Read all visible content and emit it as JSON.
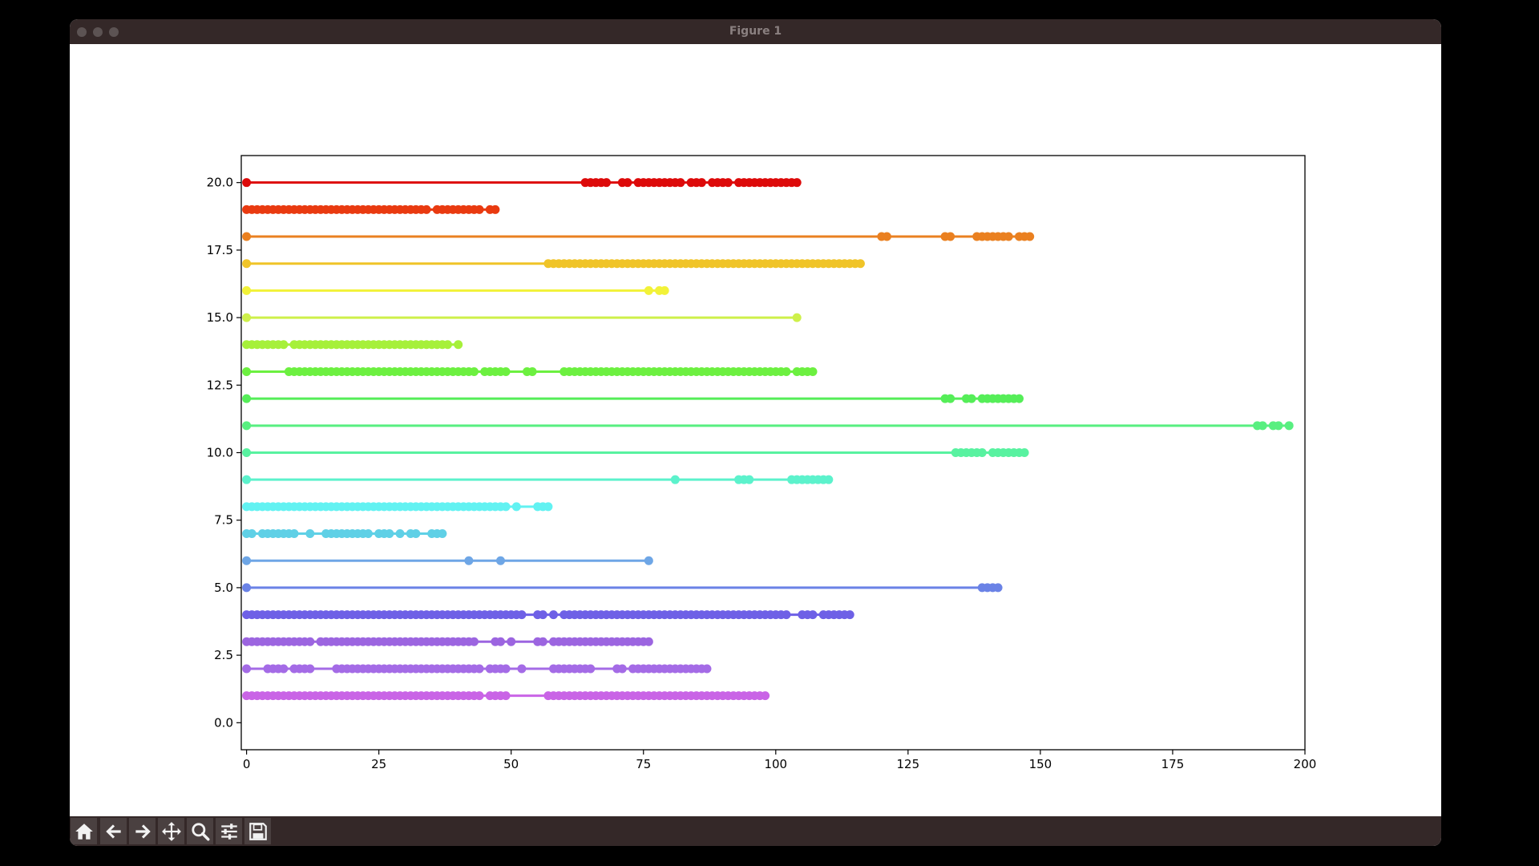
{
  "window": {
    "title": "Figure 1"
  },
  "toolbar": {
    "buttons": [
      {
        "name": "home-icon"
      },
      {
        "name": "back-arrow-icon"
      },
      {
        "name": "forward-arrow-icon"
      },
      {
        "name": "pan-move-icon"
      },
      {
        "name": "zoom-magnifier-icon"
      },
      {
        "name": "configure-subplots-icon"
      },
      {
        "name": "save-floppy-icon"
      }
    ]
  },
  "chart_data": {
    "type": "scatter",
    "title": "",
    "xlabel": "",
    "ylabel": "",
    "xlim": [
      -1,
      200
    ],
    "ylim": [
      -1,
      21
    ],
    "xticks": [
      0,
      25,
      50,
      75,
      100,
      125,
      150,
      175,
      200
    ],
    "xtick_labels": [
      "0",
      "25",
      "50",
      "75",
      "100",
      "125",
      "150",
      "175",
      "200"
    ],
    "yticks": [
      0,
      2.5,
      5,
      7.5,
      10,
      12.5,
      15,
      17.5,
      20
    ],
    "ytick_labels": [
      "0.0",
      "2.5",
      "5.0",
      "7.5",
      "10.0",
      "12.5",
      "15.0",
      "17.5",
      "20.0"
    ],
    "grid": false,
    "series": [
      {
        "y": 1,
        "color": "#c964e6",
        "x": [
          0,
          1,
          2,
          3,
          4,
          5,
          6,
          7,
          8,
          9,
          10,
          11,
          12,
          13,
          14,
          15,
          16,
          17,
          18,
          19,
          20,
          21,
          22,
          23,
          24,
          25,
          26,
          27,
          28,
          29,
          30,
          31,
          32,
          33,
          34,
          35,
          36,
          37,
          38,
          39,
          40,
          41,
          42,
          43,
          44,
          46,
          47,
          48,
          49,
          57,
          58,
          59,
          60,
          61,
          62,
          63,
          64,
          65,
          66,
          67,
          68,
          69,
          70,
          71,
          72,
          73,
          74,
          75,
          76,
          77,
          78,
          79,
          80,
          81,
          82,
          83,
          84,
          85,
          86,
          87,
          88,
          89,
          90,
          91,
          92,
          93,
          94,
          95,
          96,
          97,
          98
        ]
      },
      {
        "y": 2,
        "color": "#a46be6",
        "x": [
          0,
          4,
          5,
          6,
          7,
          9,
          10,
          11,
          12,
          17,
          18,
          19,
          20,
          21,
          22,
          23,
          24,
          25,
          26,
          27,
          28,
          29,
          30,
          31,
          32,
          33,
          34,
          35,
          36,
          37,
          38,
          39,
          40,
          41,
          42,
          43,
          44,
          46,
          47,
          48,
          49,
          52,
          58,
          59,
          60,
          61,
          62,
          63,
          64,
          65,
          70,
          71,
          73,
          74,
          75,
          76,
          77,
          78,
          79,
          80,
          81,
          82,
          83,
          84,
          85,
          86,
          87
        ]
      },
      {
        "y": 3,
        "color": "#9c65e0",
        "x": [
          0,
          1,
          2,
          3,
          4,
          5,
          6,
          7,
          8,
          9,
          10,
          11,
          12,
          14,
          15,
          16,
          17,
          18,
          19,
          20,
          21,
          22,
          23,
          24,
          25,
          26,
          27,
          28,
          29,
          30,
          31,
          32,
          33,
          34,
          35,
          36,
          37,
          38,
          39,
          40,
          41,
          42,
          43,
          47,
          48,
          50,
          55,
          56,
          58,
          59,
          60,
          61,
          62,
          63,
          64,
          65,
          66,
          67,
          68,
          69,
          70,
          71,
          72,
          73,
          74,
          75,
          76
        ]
      },
      {
        "y": 4,
        "color": "#6e60e6",
        "x": [
          0,
          1,
          2,
          3,
          4,
          5,
          6,
          7,
          8,
          9,
          10,
          11,
          12,
          13,
          14,
          15,
          16,
          17,
          18,
          19,
          20,
          21,
          22,
          23,
          24,
          25,
          26,
          27,
          28,
          29,
          30,
          31,
          32,
          33,
          34,
          35,
          36,
          37,
          38,
          39,
          40,
          41,
          42,
          43,
          44,
          45,
          46,
          47,
          48,
          49,
          50,
          51,
          52,
          55,
          56,
          58,
          60,
          61,
          62,
          63,
          64,
          65,
          66,
          67,
          68,
          69,
          70,
          71,
          72,
          73,
          74,
          75,
          76,
          77,
          78,
          79,
          80,
          81,
          82,
          83,
          84,
          85,
          86,
          87,
          88,
          89,
          90,
          91,
          92,
          93,
          94,
          95,
          96,
          97,
          98,
          99,
          100,
          101,
          102,
          105,
          106,
          107,
          109,
          110,
          111,
          112,
          113,
          114
        ]
      },
      {
        "y": 5,
        "color": "#6a82e6",
        "x": [
          0,
          139,
          140,
          141,
          142
        ]
      },
      {
        "y": 6,
        "color": "#6ea6e6",
        "x": [
          0,
          42,
          48,
          76
        ]
      },
      {
        "y": 7,
        "color": "#5fd0e6",
        "x": [
          0,
          1,
          3,
          4,
          5,
          6,
          7,
          8,
          9,
          12,
          15,
          16,
          17,
          18,
          19,
          20,
          21,
          22,
          23,
          25,
          26,
          27,
          29,
          31,
          32,
          35,
          36,
          37
        ]
      },
      {
        "y": 8,
        "color": "#62f2f2",
        "x": [
          0,
          1,
          2,
          3,
          4,
          5,
          6,
          7,
          8,
          9,
          10,
          11,
          12,
          13,
          14,
          15,
          16,
          17,
          18,
          19,
          20,
          21,
          22,
          23,
          24,
          25,
          26,
          27,
          28,
          29,
          30,
          31,
          32,
          33,
          34,
          35,
          36,
          37,
          38,
          39,
          40,
          41,
          42,
          43,
          44,
          45,
          46,
          47,
          48,
          49,
          51,
          55,
          56,
          57
        ]
      },
      {
        "y": 9,
        "color": "#5cf2cc",
        "x": [
          0,
          81,
          93,
          94,
          95,
          103,
          104,
          105,
          106,
          107,
          108,
          109,
          110
        ]
      },
      {
        "y": 10,
        "color": "#58f2a0",
        "x": [
          0,
          134,
          135,
          136,
          137,
          138,
          139,
          141,
          142,
          143,
          144,
          145,
          146,
          147
        ]
      },
      {
        "y": 11,
        "color": "#58ef80",
        "x": [
          0,
          191,
          192,
          194,
          195,
          197
        ]
      },
      {
        "y": 12,
        "color": "#55ee58",
        "x": [
          0,
          132,
          133,
          136,
          137,
          139,
          140,
          141,
          142,
          143,
          144,
          145,
          146
        ]
      },
      {
        "y": 13,
        "color": "#6cf040",
        "x": [
          0,
          8,
          9,
          10,
          11,
          12,
          13,
          14,
          15,
          16,
          17,
          18,
          19,
          20,
          21,
          22,
          23,
          24,
          25,
          26,
          27,
          28,
          29,
          30,
          31,
          32,
          33,
          34,
          35,
          36,
          37,
          38,
          39,
          40,
          41,
          42,
          43,
          45,
          46,
          47,
          48,
          49,
          53,
          54,
          60,
          61,
          62,
          63,
          64,
          65,
          66,
          67,
          68,
          69,
          70,
          71,
          72,
          73,
          74,
          75,
          76,
          77,
          78,
          79,
          80,
          81,
          82,
          83,
          84,
          85,
          86,
          87,
          88,
          89,
          90,
          91,
          92,
          93,
          94,
          95,
          96,
          97,
          98,
          99,
          100,
          101,
          102,
          104,
          105,
          106,
          107
        ]
      },
      {
        "y": 14,
        "color": "#a6f03a",
        "x": [
          0,
          1,
          2,
          3,
          4,
          5,
          6,
          7,
          9,
          10,
          11,
          12,
          13,
          14,
          15,
          16,
          17,
          18,
          19,
          20,
          21,
          22,
          23,
          24,
          25,
          26,
          27,
          28,
          29,
          30,
          31,
          32,
          33,
          34,
          35,
          36,
          37,
          38,
          40
        ]
      },
      {
        "y": 15,
        "color": "#cef04a",
        "x": [
          0,
          104
        ]
      },
      {
        "y": 16,
        "color": "#f2f238",
        "x": [
          0,
          76,
          78,
          79
        ]
      },
      {
        "y": 17,
        "color": "#f0c428",
        "x": [
          0,
          57,
          58,
          59,
          60,
          61,
          62,
          63,
          64,
          65,
          66,
          67,
          68,
          69,
          70,
          71,
          72,
          73,
          74,
          75,
          76,
          77,
          78,
          79,
          80,
          81,
          82,
          83,
          84,
          85,
          86,
          87,
          88,
          89,
          90,
          91,
          92,
          93,
          94,
          95,
          96,
          97,
          98,
          99,
          100,
          101,
          102,
          103,
          104,
          105,
          106,
          107,
          108,
          109,
          110,
          111,
          112,
          113,
          114,
          115,
          116
        ]
      },
      {
        "y": 18,
        "color": "#ea8020",
        "x": [
          0,
          120,
          121,
          132,
          133,
          138,
          139,
          140,
          141,
          142,
          143,
          144,
          146,
          147,
          148
        ]
      },
      {
        "y": 19,
        "color": "#e93a10",
        "x": [
          0,
          1,
          2,
          3,
          4,
          5,
          6,
          7,
          8,
          9,
          10,
          11,
          12,
          13,
          14,
          15,
          16,
          17,
          18,
          19,
          20,
          21,
          22,
          23,
          24,
          25,
          26,
          27,
          28,
          29,
          30,
          31,
          32,
          33,
          34,
          36,
          37,
          38,
          39,
          40,
          41,
          42,
          43,
          44,
          46,
          47
        ]
      },
      {
        "y": 20,
        "color": "#dd0a0a",
        "x": [
          0,
          64,
          65,
          66,
          67,
          68,
          71,
          72,
          74,
          75,
          76,
          77,
          78,
          79,
          80,
          81,
          82,
          84,
          85,
          86,
          88,
          89,
          90,
          91,
          93,
          94,
          95,
          96,
          97,
          98,
          99,
          100,
          101,
          102,
          103,
          104
        ]
      }
    ]
  }
}
